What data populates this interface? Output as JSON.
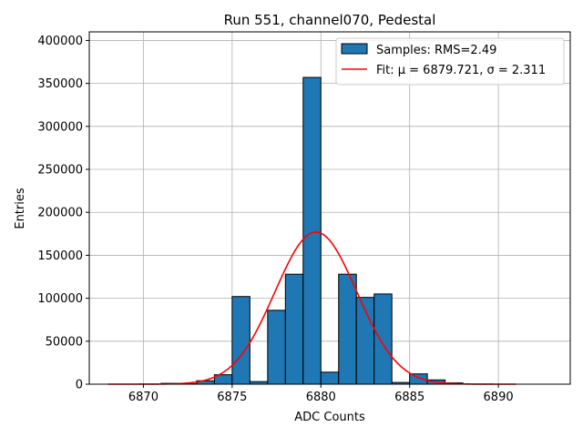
{
  "chart_data": {
    "type": "bar",
    "title": "Run 551, channel070, Pedestal",
    "xlabel": "ADC Counts",
    "ylabel": "Entries",
    "xlim": [
      6866.95,
      6894.05
    ],
    "ylim": [
      0,
      410000
    ],
    "xticks": [
      6870,
      6875,
      6880,
      6885,
      6890
    ],
    "yticks": [
      0,
      50000,
      100000,
      150000,
      200000,
      250000,
      300000,
      350000,
      400000
    ],
    "grid": true,
    "legend_position": "upper right",
    "bin_width": 1.0,
    "histogram": {
      "name": "Samples: RMS=2.49",
      "color": "#1f77b4",
      "edgecolor": "#000000",
      "bins": [
        {
          "left": 6871,
          "value": 1000
        },
        {
          "left": 6872,
          "value": 500
        },
        {
          "left": 6873,
          "value": 4000
        },
        {
          "left": 6874,
          "value": 11000
        },
        {
          "left": 6875,
          "value": 102000
        },
        {
          "left": 6876,
          "value": 3000
        },
        {
          "left": 6877,
          "value": 86000
        },
        {
          "left": 6878,
          "value": 128000
        },
        {
          "left": 6879,
          "value": 357000
        },
        {
          "left": 6880,
          "value": 14000
        },
        {
          "left": 6881,
          "value": 128000
        },
        {
          "left": 6882,
          "value": 101000
        },
        {
          "left": 6883,
          "value": 105000
        },
        {
          "left": 6884,
          "value": 2000
        },
        {
          "left": 6885,
          "value": 12000
        },
        {
          "left": 6886,
          "value": 5000
        },
        {
          "left": 6887,
          "value": 1500
        }
      ]
    },
    "fit": {
      "label": "Fit: μ = 6879.721, σ = 2.311",
      "mu": 6879.721,
      "sigma": 2.311,
      "amplitude": 177000,
      "x_range": [
        6868,
        6891
      ],
      "color": "#ff0000"
    }
  }
}
